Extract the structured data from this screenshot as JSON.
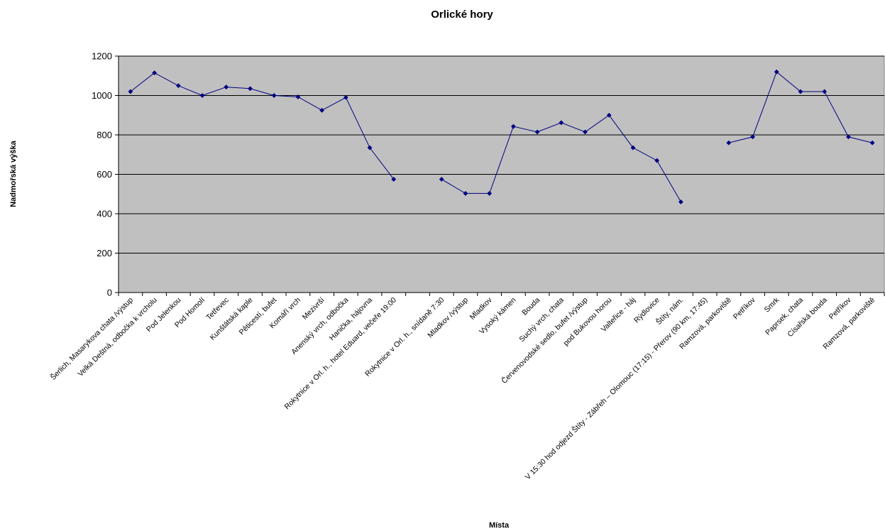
{
  "chart_data": {
    "type": "line",
    "title": "Orlické hory",
    "xlabel": "Místa",
    "ylabel": "Nadmořská výška",
    "ylim": [
      0,
      1200
    ],
    "yticks": [
      0,
      200,
      400,
      600,
      800,
      1000,
      1200
    ],
    "grid": true,
    "legend": "none",
    "colors": {
      "plot_bg": "#c0c0c0",
      "line": "#000080",
      "grid": "#000000"
    },
    "categories": [
      "Šerlich, Masarykova chata /výstup",
      "Velká Deštná, odbočka k vrcholu",
      "Pod Jelenkou",
      "Pod Homolí",
      "Tetřevec",
      "Kunštátská kaple",
      "Pěticestí, bufet",
      "Komáří vrch",
      "Mezivrší",
      "Anenský vrch, odbočka",
      "Hanička, hájovna",
      "Rokytnice v Orl. h., hotel Eduard, večeře 19:00",
      "",
      "Rokytnice v Orl. h., snídaně 7:30",
      "Mladkov /výstup",
      "Mladkov",
      "Vysoký kámen",
      "Bouda",
      "Suchý vrch, chata",
      "Červenovodské sedlo, bufet /výstup",
      "pod Bukovou horou",
      "Valteřice - háj",
      "Rýdlovice",
      "Štíty, nám.",
      "V 15:30 hod odjezd Štíty - Zábřeh – Olomouc (17:15) - Přerov (90 km, 17:45)",
      "Ramzová, parkoviště",
      "Petříkov",
      "Smrk",
      "Paprsek, chata",
      "Císařská bouda",
      "Petříkov",
      "Ramzová, parkoviště"
    ],
    "series": [
      {
        "values": [
          1020,
          1115,
          1050,
          1000,
          1043,
          1035,
          1000,
          993,
          925,
          990,
          735,
          575,
          null,
          575,
          503,
          503,
          843,
          815,
          862,
          815,
          900,
          735,
          670,
          460,
          null,
          760,
          790,
          1120,
          1020,
          1020,
          790,
          760
        ]
      }
    ]
  }
}
